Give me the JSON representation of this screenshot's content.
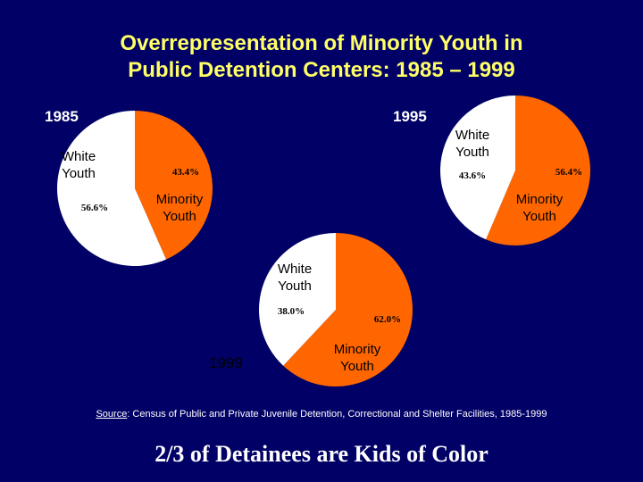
{
  "title": {
    "line1": "Overrepresentation of Minority Youth in",
    "line2": "Public Detention Centers: 1985 – 1999"
  },
  "colors": {
    "background": "#000066",
    "title": "#FFFF66",
    "minority": "#FF6600",
    "white": "#FFFFFF"
  },
  "chart_data": [
    {
      "type": "pie",
      "title": "1985",
      "categories": [
        "Minority Youth",
        "White Youth"
      ],
      "values": [
        43.4,
        56.6
      ],
      "value_labels": [
        "43.4%",
        "56.6%"
      ],
      "label_lines": [
        [
          "Minority",
          "Youth"
        ],
        [
          "White",
          "Youth"
        ]
      ]
    },
    {
      "type": "pie",
      "title": "1995",
      "categories": [
        "Minority Youth",
        "White Youth"
      ],
      "values": [
        56.4,
        43.6
      ],
      "value_labels": [
        "56.4%",
        "43.6%"
      ],
      "label_lines": [
        [
          "Minority",
          "Youth"
        ],
        [
          "White",
          "Youth"
        ]
      ]
    },
    {
      "type": "pie",
      "title": "1999",
      "categories": [
        "Minority Youth",
        "White Youth"
      ],
      "values": [
        62.0,
        38.0
      ],
      "value_labels": [
        "62.0%",
        "38.0%"
      ],
      "label_lines": [
        [
          "Minority",
          "Youth"
        ],
        [
          "White",
          "Youth"
        ]
      ]
    }
  ],
  "source": {
    "label": "Source",
    "text": ": Census of Public and Private Juvenile Detention, Correctional and Shelter Facilities, 1985-1999"
  },
  "tagline": "2/3 of Detainees are Kids of Color"
}
